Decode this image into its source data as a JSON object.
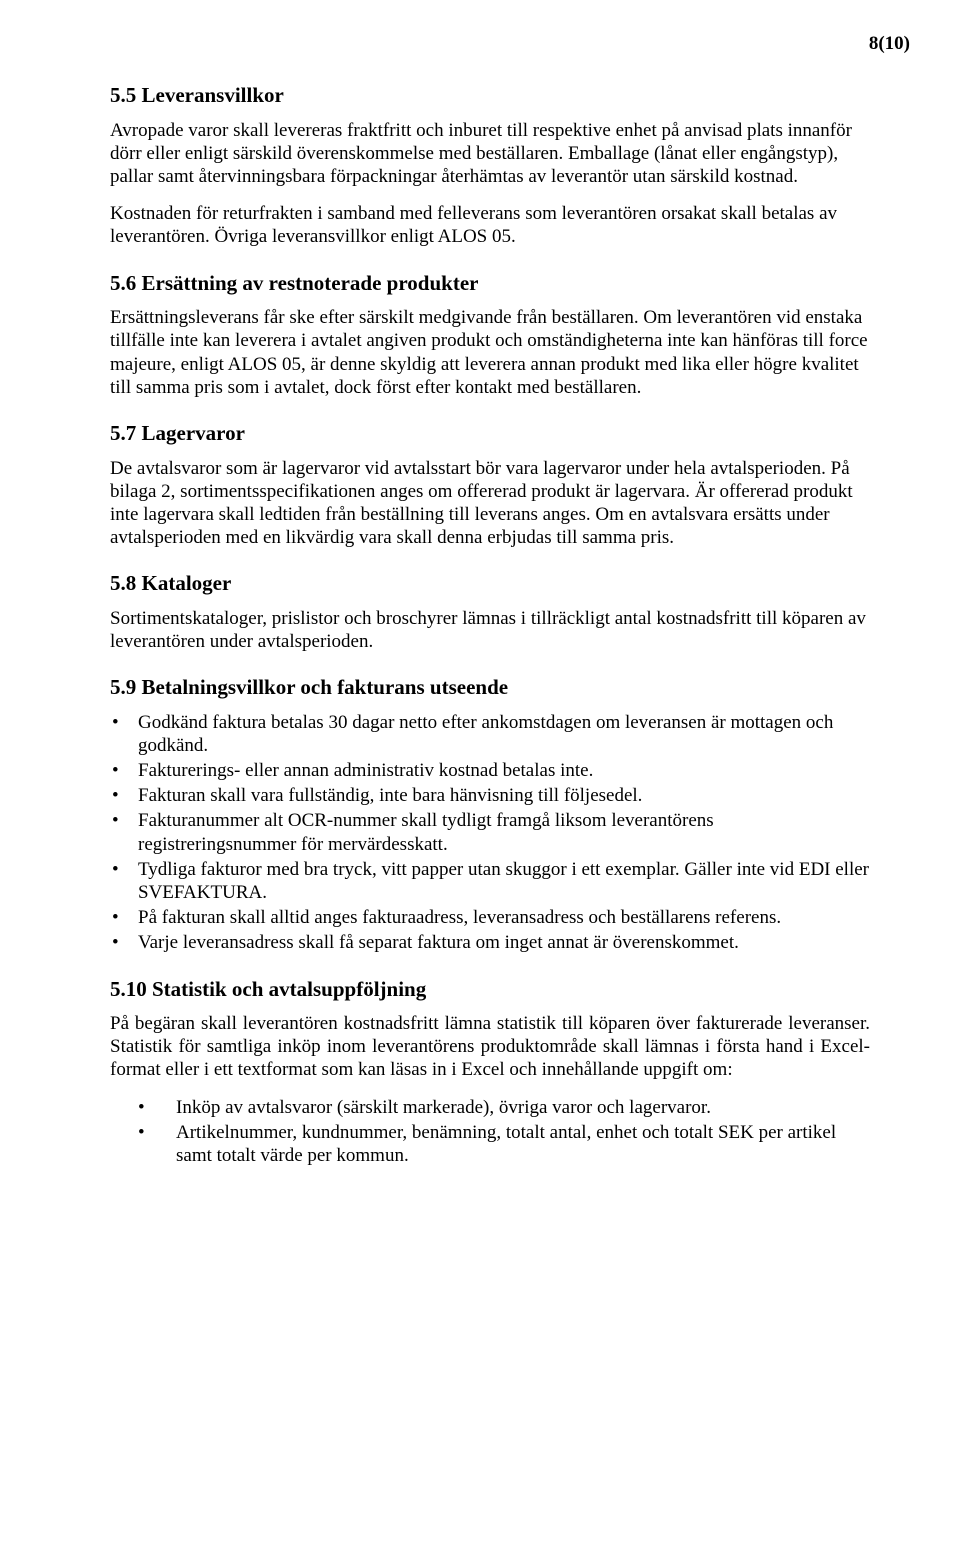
{
  "page_number": "8(10)",
  "sec_5_5": {
    "heading": "5.5  Leveransvillkor",
    "p1": "Avropade varor skall levereras fraktfritt och inburet till respektive enhet på anvisad plats innanför dörr eller enligt särskild överenskommelse med beställaren. Emballage (lånat eller engångstyp), pallar samt återvinningsbara förpackningar återhämtas av leverantör utan särskild kostnad.",
    "p2": "Kostnaden för returfrakten i samband med felleverans som leverantören orsakat skall betalas av leverantören. Övriga leveransvillkor enligt ALOS 05."
  },
  "sec_5_6": {
    "heading": "5.6  Ersättning av restnoterade produkter",
    "p1": "Ersättningsleverans får ske efter särskilt medgivande från beställaren. Om leverantören vid enstaka tillfälle inte kan leverera i avtalet angiven produkt och omständigheterna inte kan hänföras till force majeure, enligt ALOS 05, är denne skyldig att leverera annan produkt med lika eller högre kvalitet till samma pris som i avtalet, dock först efter kontakt med beställaren."
  },
  "sec_5_7": {
    "heading": "5.7  Lagervaror",
    "p1": "De avtalsvaror som är lagervaror vid avtalsstart bör vara lagervaror under hela avtalsperioden. På bilaga 2, sortimentsspecifikationen anges om offererad produkt är lagervara. Är offererad produkt inte lagervara skall ledtiden från beställning till leverans anges. Om en avtalsvara ersätts under avtalsperioden med en likvärdig vara skall denna erbjudas till samma pris."
  },
  "sec_5_8": {
    "heading": "5.8  Kataloger",
    "p1": "Sortimentskataloger, prislistor och broschyrer lämnas i tillräckligt antal kostnadsfritt till köparen av leverantören under avtalsperioden."
  },
  "sec_5_9": {
    "heading": "5.9  Betalningsvillkor och fakturans utseende",
    "items": [
      "Godkänd faktura betalas 30 dagar netto efter ankomstdagen om leveransen är mottagen och godkänd.",
      "Fakturerings- eller annan administrativ kostnad betalas inte.",
      "Fakturan skall vara fullständig, inte bara hänvisning till följesedel.",
      "Fakturanummer alt OCR-nummer skall tydligt framgå liksom leverantörens registreringsnummer för mervärdesskatt.",
      "Tydliga fakturor med bra tryck, vitt papper utan skuggor i ett exemplar. Gäller inte vid EDI eller SVEFAKTURA.",
      "På fakturan skall alltid anges fakturaadress, leveransadress och beställarens referens.",
      "Varje leveransadress skall få separat faktura om inget annat är överenskommet."
    ]
  },
  "sec_5_10": {
    "heading": "5.10  Statistik och avtalsuppföljning",
    "p1": "På begäran skall leverantören kostnadsfritt lämna statistik till köparen över fakturerade leveranser. Statistik för samtliga inköp inom leverantörens produktområde skall lämnas i första hand i Excel-format eller i ett textformat som kan läsas in i Excel och innehållande uppgift om:",
    "items": [
      "Inköp av avtalsvaror (särskilt markerade), övriga varor och lagervaror.",
      "Artikelnummer, kundnummer, benämning, totalt antal, enhet och totalt SEK per artikel samt totalt värde per kommun."
    ]
  }
}
